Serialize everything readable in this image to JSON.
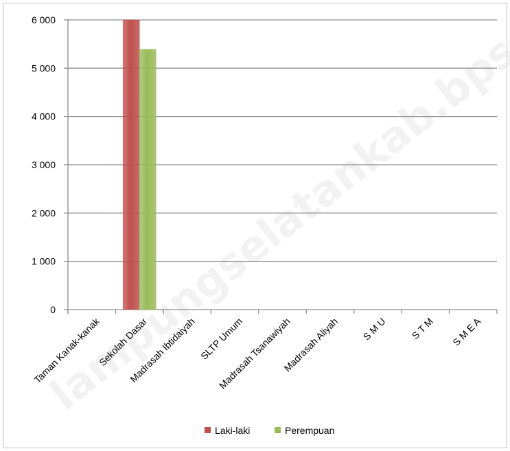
{
  "chart_data": {
    "type": "bar",
    "title": "",
    "xlabel": "",
    "ylabel": "",
    "ylim": [
      0,
      6000
    ],
    "y_ticks": [
      0,
      1000,
      2000,
      3000,
      4000,
      5000,
      6000
    ],
    "y_tick_labels": [
      "0",
      "1 000",
      "2 000",
      "3 000",
      "4 000",
      "5 000",
      "6 000"
    ],
    "grid": true,
    "legend_position": "bottom",
    "categories": [
      "Taman Kanak-kanak",
      "Sekolah Dasar",
      "Madrasah Ibtidaiyah",
      "SLTP Umum",
      "Madrasah Tsanawiyah",
      "Madrasah Aliyah",
      "S M U",
      "S T M",
      "S M E A"
    ],
    "series": [
      {
        "name": "Laki-laki",
        "color": "#c0504d",
        "values": [
          0,
          6000,
          0,
          0,
          0,
          0,
          0,
          0,
          0
        ]
      },
      {
        "name": "Perempuan",
        "color": "#9bbb59",
        "values": [
          0,
          5390,
          0,
          0,
          0,
          0,
          0,
          0,
          0
        ]
      }
    ]
  },
  "watermark_text": "lampungselatankab.bps.go.id"
}
